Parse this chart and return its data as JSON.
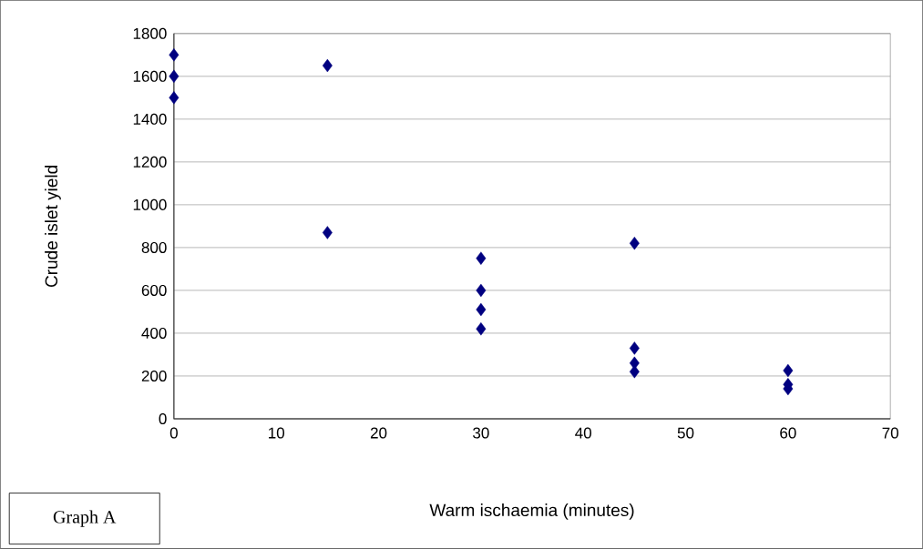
{
  "chart_data": {
    "type": "scatter",
    "xlabel": "Warm ischaemia (minutes)",
    "ylabel": "Crude islet yield",
    "annotations": [
      "Graph A"
    ],
    "series": [
      {
        "color": "#000080",
        "x": [
          0,
          0,
          0,
          15,
          15,
          30,
          30,
          30,
          30,
          45,
          45,
          45,
          45,
          60,
          60,
          60
        ],
        "values": [
          1700,
          1600,
          1500,
          1650,
          870,
          750,
          600,
          510,
          420,
          820,
          330,
          260,
          220,
          225,
          160,
          140
        ]
      }
    ],
    "xlim": [
      0,
      70
    ],
    "xticks": [
      0,
      10,
      20,
      30,
      40,
      50,
      60,
      70
    ],
    "ylim": [
      0,
      1800
    ],
    "yticks": [
      0,
      200,
      400,
      600,
      800,
      1000,
      1200,
      1400,
      1600,
      1800
    ],
    "grid": "y",
    "marker": "diamond"
  }
}
